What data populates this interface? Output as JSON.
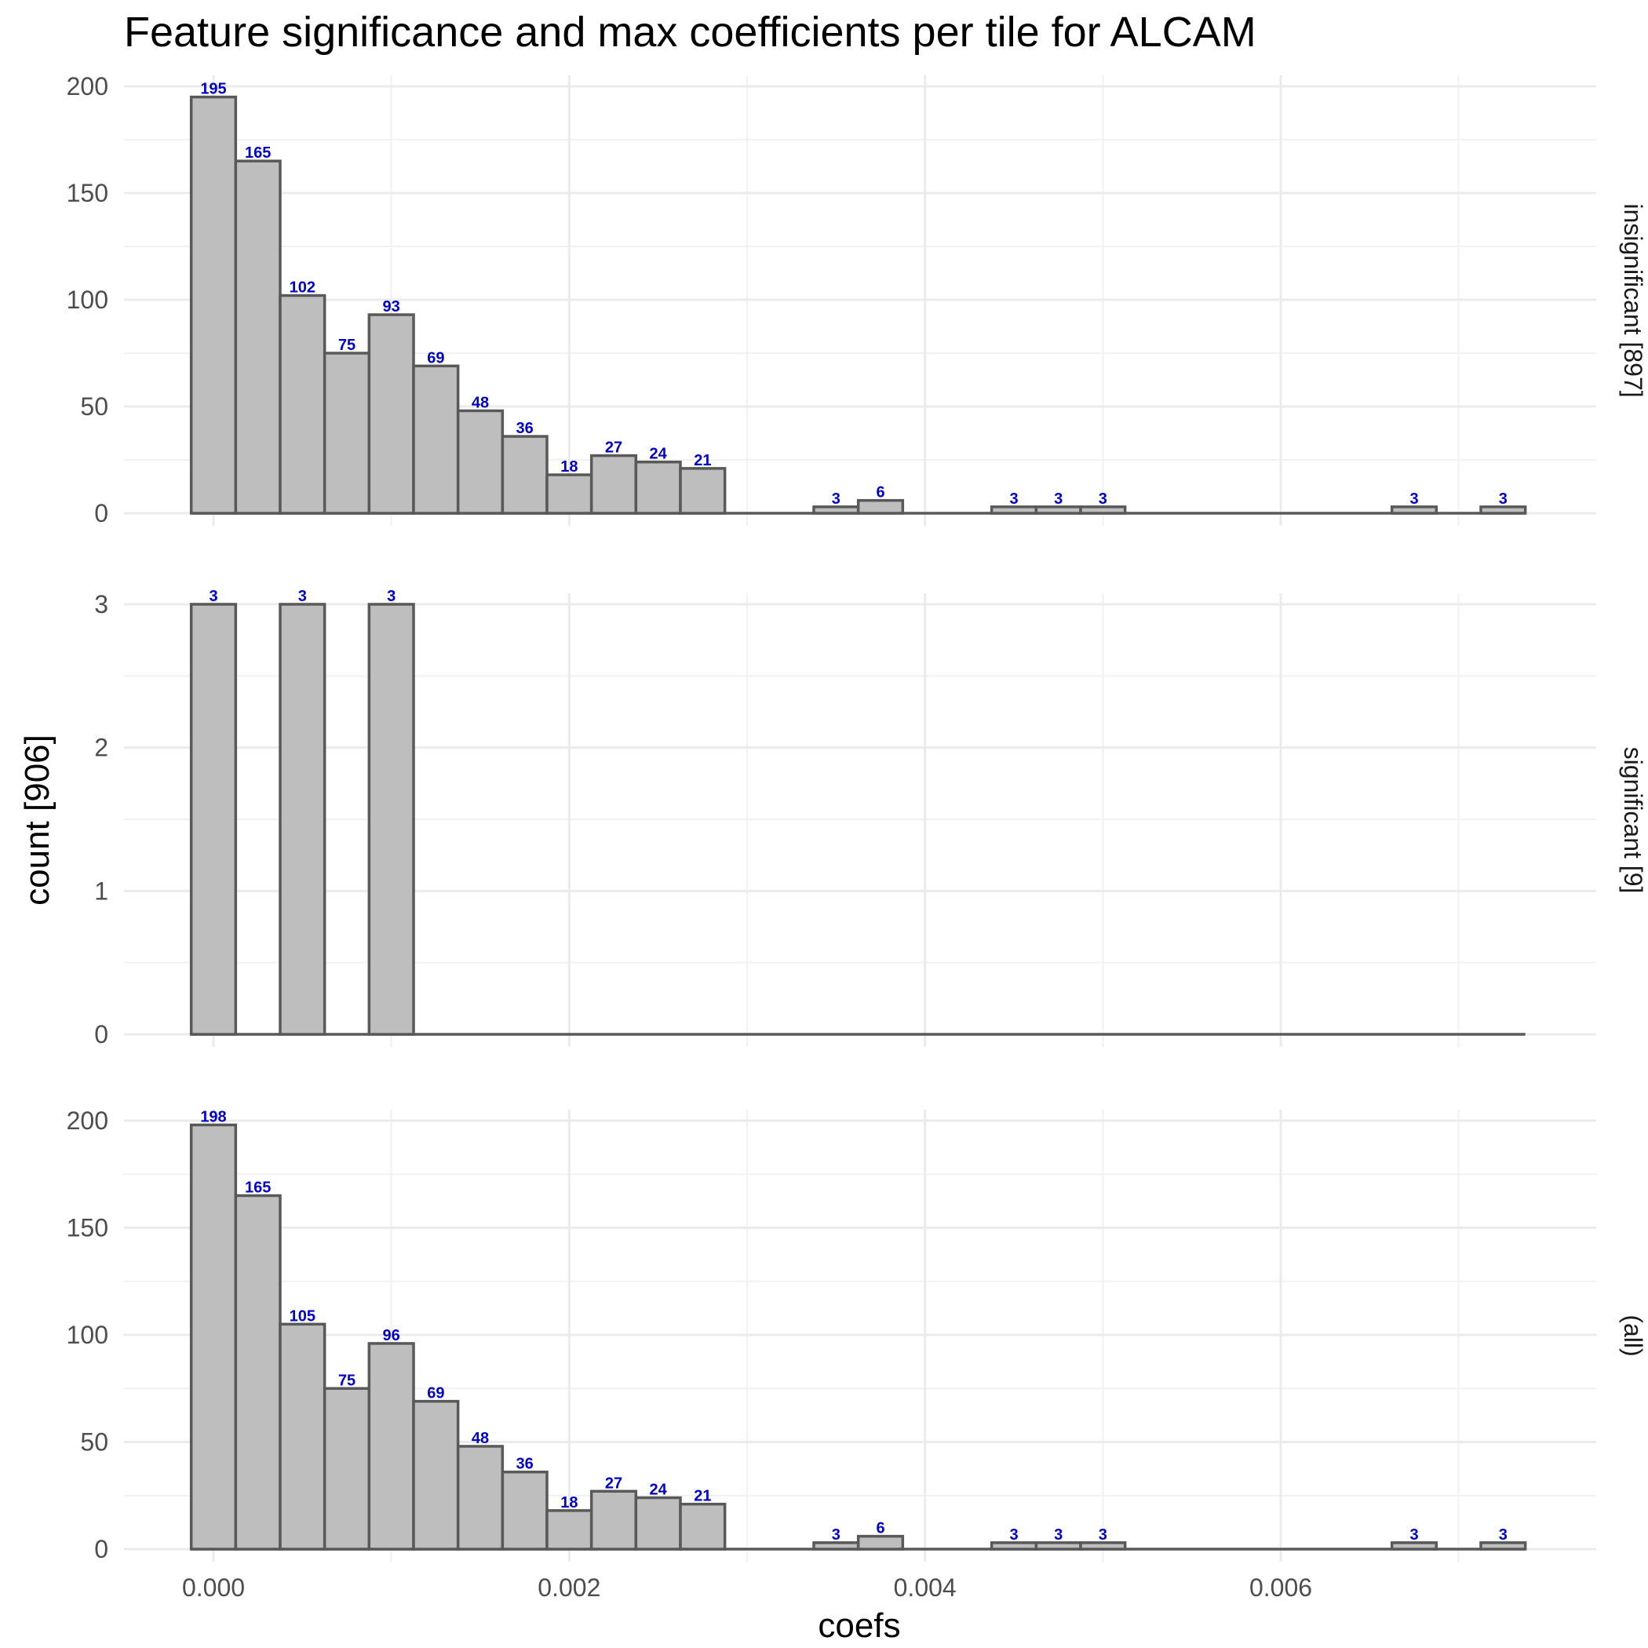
{
  "chart_data": {
    "type": "bar",
    "title": "Feature significance and max coefficients per tile for ALCAM",
    "xlabel": "coefs",
    "ylabel": "count [906]",
    "x_ticks": [
      0.0,
      0.002,
      0.004,
      0.006
    ],
    "x_tick_labels": [
      "0.000",
      "0.002",
      "0.004",
      "0.006"
    ],
    "xlim": [
      -0.0001,
      0.0074
    ],
    "bin_width": 0.00025,
    "bin_centers": [
      0.0,
      0.00025,
      0.0005,
      0.00075,
      0.001,
      0.00125,
      0.0015,
      0.00175,
      0.002,
      0.00225,
      0.0025,
      0.00275,
      0.003,
      0.00325,
      0.0035,
      0.00375,
      0.004,
      0.00425,
      0.0045,
      0.00475,
      0.005,
      0.00525,
      0.0055,
      0.00575,
      0.006,
      0.00625,
      0.0065,
      0.00675,
      0.007,
      0.00725
    ],
    "grid": true,
    "bar_fill": "#bebebe",
    "bar_stroke": "#595959",
    "label_color": "#0000cc",
    "panels": [
      {
        "strip": "insignificant [897]",
        "ylim": [
          0,
          200
        ],
        "y_ticks": [
          0,
          50,
          100,
          150,
          200
        ],
        "y_tick_labels": [
          "0",
          "50",
          "100",
          "150",
          "200"
        ],
        "values": [
          195,
          165,
          102,
          75,
          93,
          69,
          48,
          36,
          18,
          27,
          24,
          21,
          0,
          0,
          3,
          6,
          0,
          0,
          3,
          3,
          3,
          0,
          0,
          0,
          0,
          0,
          0,
          3,
          0,
          3
        ]
      },
      {
        "strip": "significant [9]",
        "ylim": [
          0,
          3
        ],
        "y_ticks": [
          0,
          1,
          2,
          3
        ],
        "y_tick_labels": [
          "0",
          "1",
          "2",
          "3"
        ],
        "values": [
          3,
          0,
          3,
          0,
          3,
          0,
          0,
          0,
          0,
          0,
          0,
          0,
          0,
          0,
          0,
          0,
          0,
          0,
          0,
          0,
          0,
          0,
          0,
          0,
          0,
          0,
          0,
          0,
          0,
          0
        ]
      },
      {
        "strip": "(all)",
        "ylim": [
          0,
          200
        ],
        "y_ticks": [
          0,
          50,
          100,
          150,
          200
        ],
        "y_tick_labels": [
          "0",
          "50",
          "100",
          "150",
          "200"
        ],
        "values": [
          198,
          165,
          105,
          75,
          96,
          69,
          48,
          36,
          18,
          27,
          24,
          21,
          0,
          0,
          3,
          6,
          0,
          0,
          3,
          3,
          3,
          0,
          0,
          0,
          0,
          0,
          0,
          3,
          0,
          3
        ]
      }
    ]
  }
}
